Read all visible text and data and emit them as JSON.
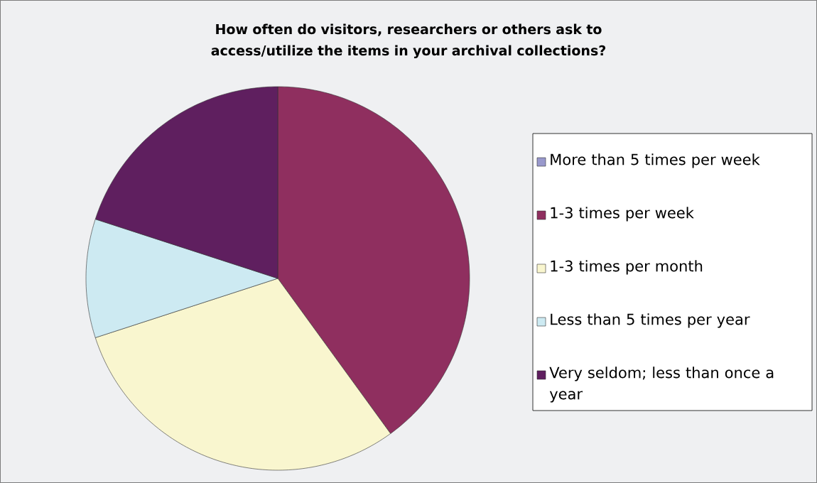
{
  "chart_data": {
    "type": "pie",
    "title": "How often do visitors, researchers or others ask to access/utilize the items in your archival collections?",
    "categories": [
      "More than 5 times per week",
      "1-3 times per week",
      "1-3 times per month",
      "Less than 5 times per year",
      "Very seldom; less than once a year"
    ],
    "values": [
      0,
      40,
      30,
      10,
      20
    ],
    "colors": [
      "#9999cc",
      "#8f2f5f",
      "#f9f6cf",
      "#cdeaf2",
      "#5f1f5f"
    ],
    "legend": "right"
  }
}
